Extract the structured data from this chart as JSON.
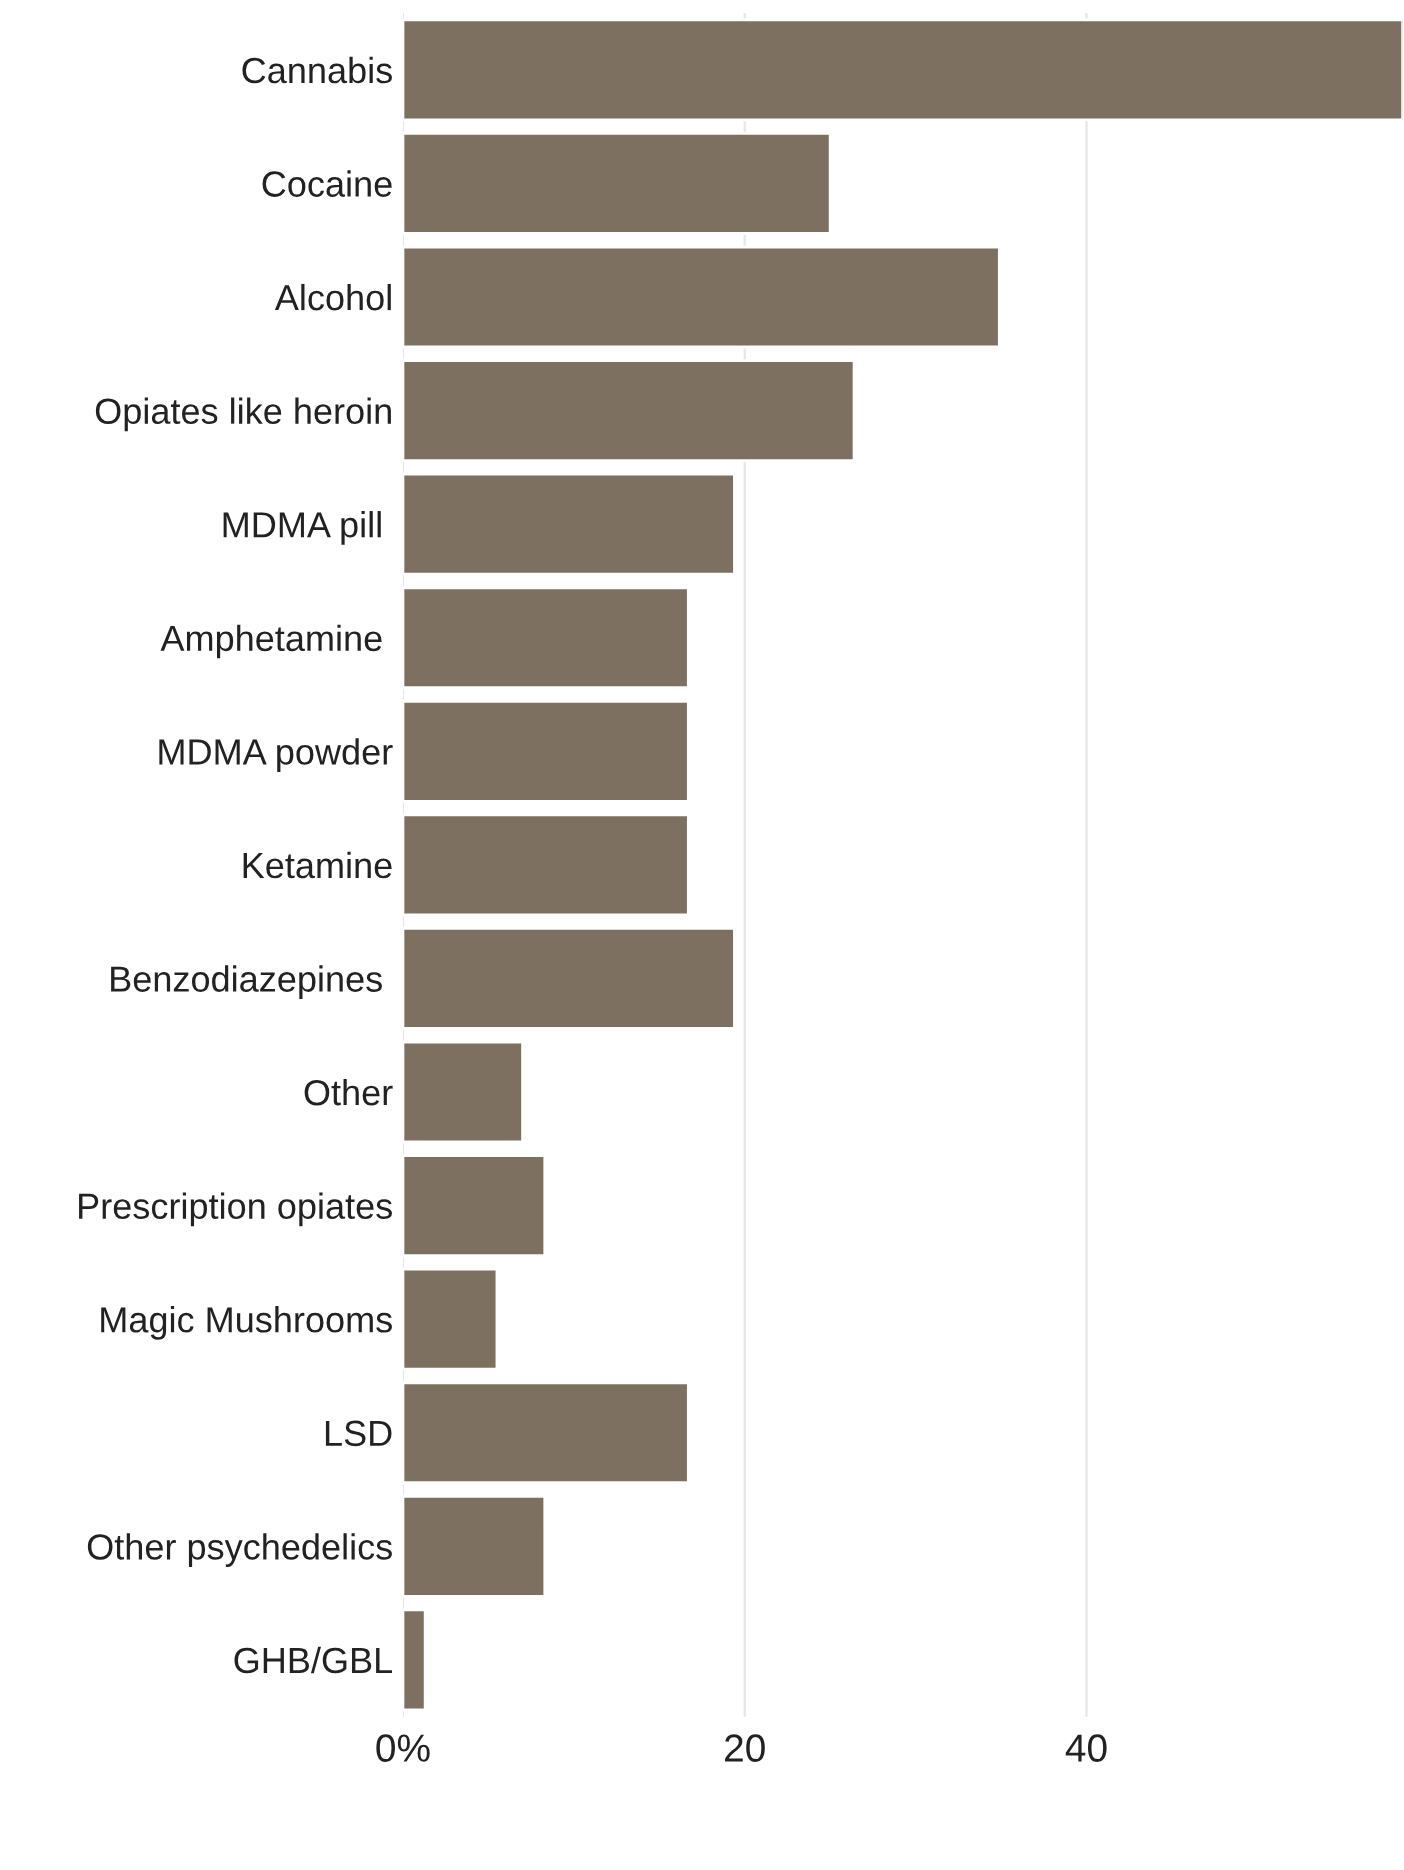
{
  "chart_data": {
    "type": "bar",
    "orientation": "horizontal",
    "categories": [
      "Cannabis",
      "Cocaine",
      "Alcohol",
      "Opiates like heroin",
      "MDMA pill ",
      "Amphetamine ",
      "MDMA powder",
      "Ketamine",
      "Benzodiazepines ",
      "Other",
      "Prescription opiates",
      "Magic Mushrooms",
      "LSD",
      "Other psychedelics",
      "GHB/GBL"
    ],
    "values": [
      58.5,
      25,
      34.9,
      26.4,
      19.4,
      16.7,
      16.7,
      16.7,
      19.4,
      7,
      8.3,
      5.5,
      16.7,
      8.3,
      1.3
    ],
    "color": "#7d7060",
    "xlim": [
      0,
      58.5
    ],
    "xticks": [
      {
        "value": 0,
        "label": "0%"
      },
      20,
      40
    ],
    "grid": "x"
  }
}
